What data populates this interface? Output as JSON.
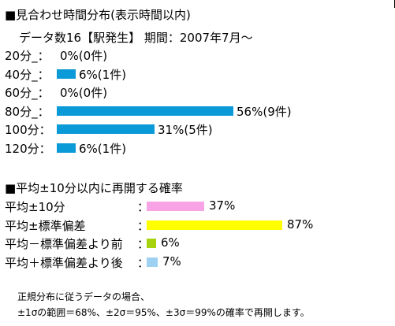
{
  "section1": {
    "title": "■見合わせ時間分布(表示時間以内)",
    "subtitle": "データ数16【駅発生】 期間：2007年7月～"
  },
  "section2": {
    "title": "■平均±10分以内に再開する確率"
  },
  "colors": {
    "blue": "#0B9AD8",
    "pink": "#F7A3E6",
    "yellow": "#FFFF00",
    "green": "#A7D20F",
    "lightblue": "#9ED0F1"
  },
  "chart_data": [
    {
      "type": "bar",
      "orientation": "horizontal",
      "categories": [
        "20分_：",
        "40分_：",
        "60分_：",
        "80分_：",
        "100分：",
        "120分："
      ],
      "values": [
        0,
        6,
        0,
        56,
        31,
        6
      ],
      "value_labels": [
        "0%(0件)",
        "6%(1件)",
        "0%(0件)",
        "56%(9件)",
        "31%(5件)",
        "6%(1件)"
      ],
      "counts": [
        0,
        1,
        0,
        9,
        5,
        1
      ],
      "color": "#0B9AD8"
    },
    {
      "type": "bar",
      "orientation": "horizontal",
      "categories": [
        "平均±10分",
        "平均±標準偏差",
        "平均－標準偏差より前",
        "平均＋標準偏差より後"
      ],
      "values": [
        37,
        87,
        6,
        7
      ],
      "value_labels": [
        "37%",
        "87%",
        "6%",
        "7%"
      ],
      "colors": [
        "#F7A3E6",
        "#FFFF00",
        "#A7D20F",
        "#9ED0F1"
      ],
      "separators": [
        "：",
        "：",
        "：",
        "："
      ]
    }
  ],
  "footer": {
    "line1": "正規分布に従うデータの場合、",
    "line2": "±1σの範囲＝68%、±2σ＝95%、±3σ＝99%の確率で再開します。"
  }
}
